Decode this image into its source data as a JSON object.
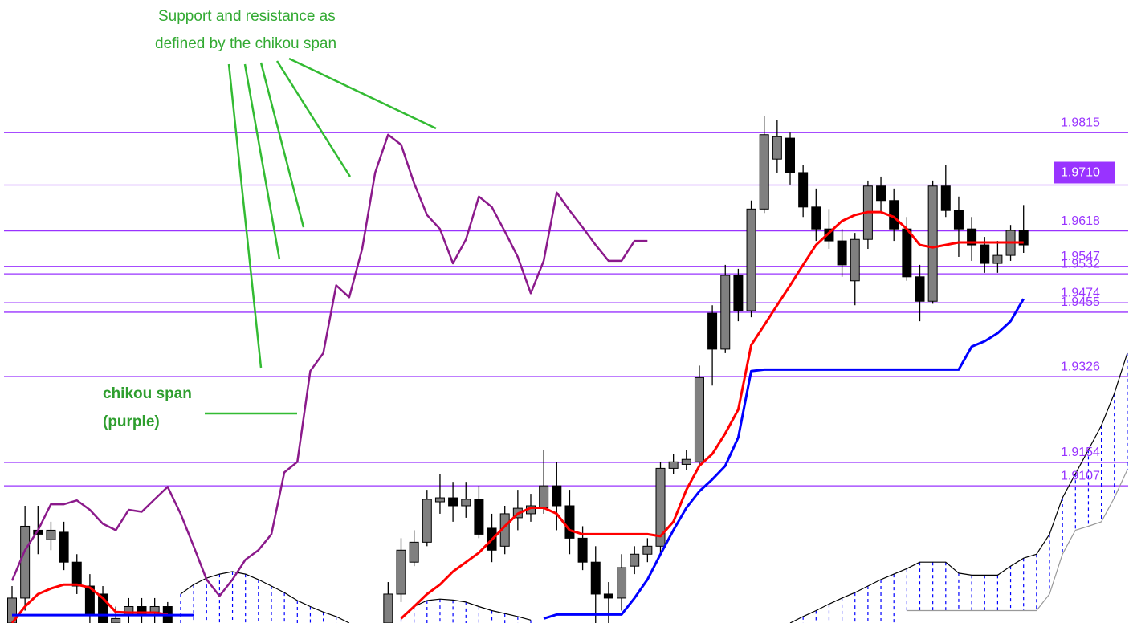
{
  "chart_data": {
    "type": "candlestick",
    "annotations": [
      "Support and resistance as",
      "defined by the chikou span",
      "chikou span",
      "(purple)"
    ],
    "ylim": [
      1.8832,
      2.0081
    ],
    "yticks": [
      1.9815,
      {
        "value": 1.971,
        "label": "1.9710"
      },
      1.9618,
      1.9547,
      1.9532,
      1.9474,
      1.9455,
      1.9326,
      1.9154,
      1.9107
    ],
    "grid": true,
    "grid_color": "#9933ff",
    "highlight": 1.971,
    "up_color": "#808080",
    "down_color": "#000000",
    "open": [
      1.8832,
      1.8882,
      1.9018,
      1.8999,
      1.9014,
      1.8954,
      1.8906,
      1.889,
      1.8832,
      1.8849,
      1.8865,
      1.8854,
      1.8865,
      null,
      null,
      null,
      null,
      null,
      null,
      null,
      null,
      null,
      null,
      null,
      null,
      null,
      null,
      null,
      null,
      1.8832,
      1.889,
      1.8954,
      1.8994,
      1.9075,
      1.9083,
      1.9067,
      1.908,
      1.9022,
      1.8986,
      1.9043,
      1.9051,
      1.9063,
      1.9107,
      1.9067,
      1.9002,
      1.8954,
      1.889,
      1.8882,
      1.8946,
      1.897,
      1.8986,
      1.9142,
      1.915,
      1.9155,
      1.9453,
      1.9381,
      1.9529,
      1.9458,
      1.9662,
      1.9762,
      1.9804,
      1.9735,
      1.9666,
      1.9622,
      1.9598,
      1.9518,
      1.9601,
      1.9708,
      1.9679,
      1.9622,
      1.9526,
      1.9477,
      1.9708,
      1.9659,
      1.9622,
      1.959,
      1.9553,
      1.9569,
      1.9619,
      null,
      null,
      null,
      null,
      null,
      null,
      null,
      null
    ],
    "close": [
      1.8882,
      1.9026,
      1.901,
      1.9018,
      1.8954,
      1.8906,
      1.8849,
      1.8832,
      1.8841,
      1.8865,
      1.8849,
      1.8865,
      1.8832,
      null,
      null,
      null,
      null,
      null,
      null,
      null,
      null,
      null,
      null,
      null,
      null,
      null,
      null,
      null,
      null,
      1.889,
      1.8978,
      1.8994,
      1.908,
      1.9083,
      1.9067,
      1.908,
      1.901,
      1.8978,
      1.9051,
      1.9062,
      1.9067,
      1.9107,
      1.9067,
      1.9002,
      1.8954,
      1.889,
      1.8882,
      1.8943,
      1.897,
      1.8986,
      1.9142,
      1.9155,
      1.916,
      1.9324,
      1.9381,
      1.9529,
      1.9458,
      1.9662,
      1.9811,
      1.9807,
      1.9735,
      1.9666,
      1.9622,
      1.9598,
      1.955,
      1.9601,
      1.9708,
      1.9679,
      1.9622,
      1.9526,
      1.9477,
      1.9708,
      1.9659,
      1.9622,
      1.959,
      1.9553,
      1.9569,
      1.9619,
      1.959,
      null,
      null,
      null,
      null,
      null,
      null,
      null,
      null
    ],
    "high": [
      1.8906,
      1.9067,
      1.9067,
      1.9035,
      1.9035,
      1.897,
      1.893,
      1.8906,
      1.8865,
      1.8882,
      1.8882,
      1.8882,
      1.8874,
      null,
      null,
      null,
      null,
      null,
      null,
      null,
      null,
      null,
      null,
      null,
      null,
      null,
      null,
      null,
      null,
      1.8914,
      1.9002,
      1.9018,
      1.9099,
      1.9131,
      1.9115,
      1.9115,
      1.9107,
      1.9051,
      1.9067,
      1.9099,
      1.9091,
      1.9179,
      1.9155,
      1.9099,
      1.9026,
      1.8986,
      1.8914,
      1.897,
      1.8986,
      1.9002,
      1.9155,
      1.9171,
      1.9179,
      1.9348,
      1.9469,
      1.955,
      1.9542,
      1.9679,
      1.9848,
      1.984,
      1.9815,
      1.9751,
      1.9703,
      1.9662,
      1.9622,
      1.9614,
      1.9719,
      1.9727,
      1.9703,
      1.9646,
      1.955,
      1.9719,
      1.9751,
      1.9687,
      1.9646,
      1.9606,
      1.9598,
      1.963,
      1.967,
      null,
      null,
      null,
      null,
      null,
      null,
      null,
      null
    ],
    "low": [
      1.8832,
      1.8857,
      1.897,
      1.8978,
      1.8938,
      1.889,
      1.8832,
      1.8832,
      1.8832,
      1.8832,
      1.8832,
      1.8832,
      1.8832,
      null,
      null,
      null,
      null,
      null,
      null,
      null,
      null,
      null,
      null,
      null,
      null,
      null,
      null,
      null,
      null,
      1.8832,
      1.8874,
      1.8946,
      1.8986,
      1.9051,
      1.9035,
      1.9043,
      1.9002,
      1.8954,
      1.897,
      1.9018,
      1.9035,
      1.9051,
      1.9018,
      1.897,
      1.8938,
      1.8832,
      1.8832,
      1.8857,
      1.893,
      1.8954,
      1.897,
      1.9131,
      1.9139,
      1.9147,
      1.9308,
      1.9373,
      1.9437,
      1.9445,
      1.9654,
      1.9735,
      1.9711,
      1.9646,
      1.9598,
      1.9582,
      1.9526,
      1.9469,
      1.9582,
      1.9654,
      1.9598,
      1.9518,
      1.9437,
      1.9472,
      1.9646,
      1.9566,
      1.9558,
      1.9534,
      1.9534,
      1.9558,
      1.9574,
      null,
      null,
      null,
      null,
      null,
      null,
      null,
      null
    ],
    "lines": [
      {
        "color": "#ff0000",
        "values": [
          1.8832,
          1.8865,
          1.889,
          1.8901,
          1.8909,
          1.8909,
          1.8903,
          1.8882,
          1.8854,
          1.8853,
          1.8853,
          1.8853,
          1.8849,
          null,
          null,
          null,
          null,
          null,
          null,
          null,
          null,
          null,
          null,
          null,
          null,
          null,
          null,
          null,
          null,
          null,
          1.8841,
          1.8865,
          1.889,
          1.8909,
          1.8935,
          1.8954,
          1.8973,
          1.8999,
          1.9026,
          1.9051,
          1.9063,
          1.9063,
          1.9051,
          1.9018,
          1.901,
          1.901,
          1.901,
          1.901,
          1.901,
          1.901,
          1.9006,
          1.9035,
          1.9099,
          1.9147,
          1.9171,
          1.9212,
          1.926,
          1.9389,
          1.9429,
          1.9469,
          1.9509,
          1.955,
          1.959,
          1.9614,
          1.9638,
          1.965,
          1.9656,
          1.9656,
          1.9646,
          1.9622,
          1.959,
          1.9585,
          1.959,
          1.9595,
          1.9595,
          1.9595,
          1.9595,
          1.9595,
          1.9595,
          null,
          null,
          null,
          null,
          null,
          null,
          null,
          null
        ]
      },
      {
        "color": "#0000ff",
        "values": [
          1.8848,
          1.8848,
          1.8848,
          1.8848,
          1.8848,
          1.8848,
          1.8848,
          1.8848,
          1.8848,
          1.8848,
          1.8848,
          1.8848,
          1.8848,
          1.8848,
          1.8848,
          null,
          null,
          null,
          null,
          null,
          null,
          null,
          null,
          null,
          null,
          null,
          null,
          null,
          null,
          null,
          null,
          null,
          null,
          null,
          null,
          null,
          null,
          null,
          null,
          null,
          null,
          1.8841,
          1.8849,
          1.8849,
          1.8849,
          1.8849,
          1.8849,
          1.8849,
          1.8882,
          1.8919,
          1.897,
          1.9018,
          1.9063,
          1.9096,
          1.912,
          1.9147,
          1.9204,
          1.9337,
          1.934,
          1.934,
          1.934,
          1.934,
          1.934,
          1.934,
          1.934,
          1.934,
          1.934,
          1.934,
          1.934,
          1.934,
          1.934,
          1.934,
          1.934,
          1.934,
          1.9386,
          1.9397,
          1.9413,
          1.9437,
          1.9482,
          null,
          null,
          null,
          null,
          null,
          null,
          null,
          null
        ]
      },
      {
        "color": "#8b1a8b",
        "values": [
          1.8917,
          1.8978,
          1.9018,
          1.907,
          1.907,
          1.9078,
          1.9059,
          1.9031,
          1.9018,
          1.9059,
          1.9055,
          1.908,
          1.9105,
          1.9051,
          1.8986,
          1.8919,
          1.8886,
          1.8919,
          1.8959,
          1.8978,
          1.901,
          1.9134,
          1.9155,
          1.9337,
          1.9373,
          1.9509,
          1.9485,
          1.9582,
          1.9735,
          1.9811,
          1.9791,
          1.9714,
          1.965,
          1.9622,
          1.9553,
          1.9601,
          1.9687,
          1.9666,
          1.9617,
          1.9566,
          1.9493,
          1.9558,
          1.9695,
          1.9659,
          1.9625,
          1.959,
          1.9558,
          1.9558,
          1.9598,
          1.9598,
          null,
          null,
          null,
          null,
          null,
          null,
          null,
          null,
          null,
          null,
          null,
          null,
          null,
          null,
          null,
          null,
          null,
          null,
          null,
          null,
          null,
          null,
          null,
          null,
          null,
          null,
          null,
          null,
          null,
          null,
          null,
          null,
          null,
          null,
          null,
          null,
          null
        ]
      }
    ],
    "cloud_upper": {
      "color": "#000000",
      "values": [
        null,
        null,
        null,
        null,
        null,
        null,
        null,
        null,
        null,
        null,
        null,
        null,
        null,
        1.889,
        1.8909,
        1.8922,
        1.893,
        1.8935,
        1.893,
        1.8919,
        1.8906,
        1.8893,
        1.8877,
        1.8865,
        1.8854,
        1.8845,
        1.8832,
        null,
        null,
        null,
        1.8841,
        1.8865,
        1.8877,
        1.888,
        1.8878,
        1.8874,
        1.8865,
        1.8857,
        1.8851,
        1.8845,
        1.8838,
        null,
        null,
        null,
        null,
        null,
        null,
        null,
        null,
        null,
        null,
        null,
        null,
        null,
        null,
        null,
        null,
        null,
        null,
        null,
        1.8832,
        1.8845,
        1.8857,
        1.887,
        1.8882,
        1.8893,
        1.8906,
        1.8919,
        1.893,
        1.8941,
        1.8954,
        1.8954,
        1.8954,
        1.8932,
        1.8928,
        1.8928,
        1.8928,
        1.8946,
        1.8962,
        1.897,
        1.901,
        1.9083,
        1.9131,
        1.9179,
        1.9228,
        1.9292,
        1.9373
      ]
    },
    "cloud_lower": {
      "color": "#999999",
      "values": [
        null,
        null,
        null,
        null,
        null,
        null,
        null,
        null,
        null,
        null,
        null,
        null,
        null,
        null,
        null,
        null,
        null,
        null,
        null,
        null,
        null,
        null,
        null,
        null,
        null,
        null,
        null,
        null,
        null,
        null,
        null,
        null,
        null,
        null,
        null,
        null,
        null,
        null,
        null,
        null,
        null,
        null,
        null,
        null,
        null,
        null,
        null,
        null,
        null,
        null,
        null,
        null,
        null,
        null,
        null,
        null,
        null,
        null,
        null,
        null,
        null,
        null,
        null,
        null,
        null,
        null,
        null,
        null,
        null,
        1.8857,
        1.8857,
        1.8857,
        1.8857,
        1.8857,
        1.8857,
        1.8857,
        1.8857,
        1.8857,
        1.8857,
        1.8857,
        1.889,
        1.897,
        1.9018,
        1.9026,
        1.9035,
        1.9083,
        1.9139
      ]
    },
    "cloud_hatch_color": "#0000ff"
  }
}
